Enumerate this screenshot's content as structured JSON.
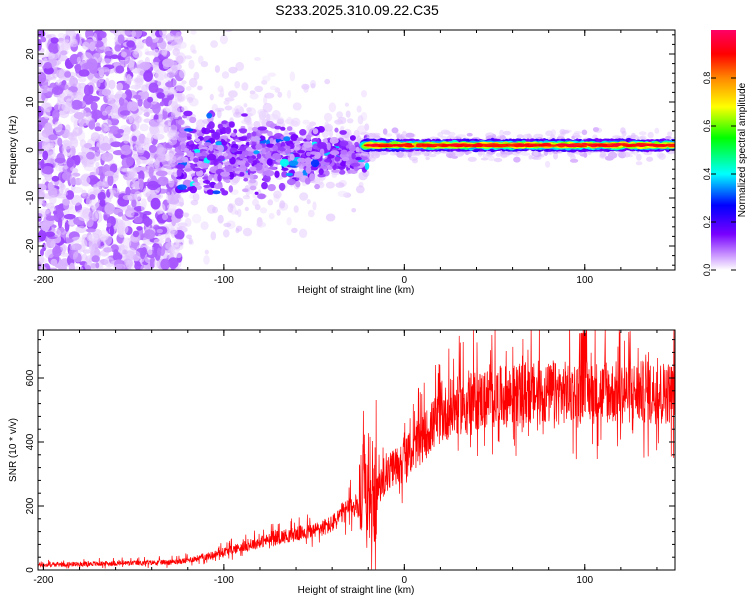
{
  "chart_data": [
    {
      "type": "heatmap",
      "title": "S233.2025.310.09.22.C35",
      "xlabel": "Height of straight line (km)",
      "ylabel": "Frequency (Hz)",
      "xlim": [
        -203,
        150
      ],
      "ylim": [
        -25,
        25
      ],
      "xticks": [
        -200,
        -100,
        0,
        100
      ],
      "xtick_labels": [
        "-200",
        "-100",
        "0",
        "100"
      ],
      "yticks": [
        -20,
        -10,
        0,
        10,
        20
      ],
      "ytick_labels": [
        "-20",
        "-10",
        "0",
        "10",
        "20"
      ],
      "description_of_signal": {
        "noise_region_x": [
          -203,
          -125
        ],
        "scintillation_region_x": [
          -125,
          -20
        ],
        "steady_tone_x": [
          -20,
          150
        ],
        "steady_tone_frequency_hz": 1
      },
      "colorbar": {
        "label": "Normalized spectral amplitude",
        "range": [
          0,
          1
        ],
        "ticks": [
          0.0,
          0.2,
          0.4,
          0.6,
          0.8
        ],
        "tick_labels": [
          "0.0",
          "0.2",
          "0.4",
          "0.6",
          "0.8"
        ],
        "colormap": [
          "#ffffff",
          "#cc99ff",
          "#7700ff",
          "#0000ff",
          "#00ffff",
          "#00ff00",
          "#ffff00",
          "#ff8800",
          "#ff0000",
          "#ff0066"
        ]
      }
    },
    {
      "type": "line",
      "xlabel": "Height of straight line (km)",
      "ylabel": "SNR (10 * v/v)",
      "xlim": [
        -203,
        150
      ],
      "ylim": [
        0,
        750
      ],
      "xticks": [
        -200,
        -100,
        0,
        100
      ],
      "xtick_labels": [
        "-200",
        "-100",
        "0",
        "100"
      ],
      "yticks": [
        0,
        200,
        400,
        600
      ],
      "ytick_labels": [
        "0",
        "200",
        "400",
        "600"
      ],
      "color": "#ff0000",
      "series": [
        {
          "name": "SNR",
          "x": [
            -203,
            -180,
            -160,
            -140,
            -125,
            -110,
            -100,
            -90,
            -80,
            -70,
            -60,
            -50,
            -40,
            -35,
            -30,
            -25,
            -22,
            -20,
            -15,
            -10,
            -5,
            0,
            5,
            10,
            15,
            20,
            25,
            30,
            40,
            50,
            60,
            70,
            80,
            90,
            100,
            110,
            120,
            130,
            140,
            150
          ],
          "y": [
            15,
            18,
            20,
            22,
            25,
            40,
            55,
            70,
            85,
            100,
            110,
            120,
            140,
            170,
            190,
            200,
            250,
            150,
            240,
            290,
            320,
            340,
            370,
            400,
            440,
            470,
            490,
            505,
            520,
            530,
            535,
            540,
            540,
            545,
            545,
            545,
            545,
            545,
            545,
            545
          ]
        }
      ]
    }
  ]
}
